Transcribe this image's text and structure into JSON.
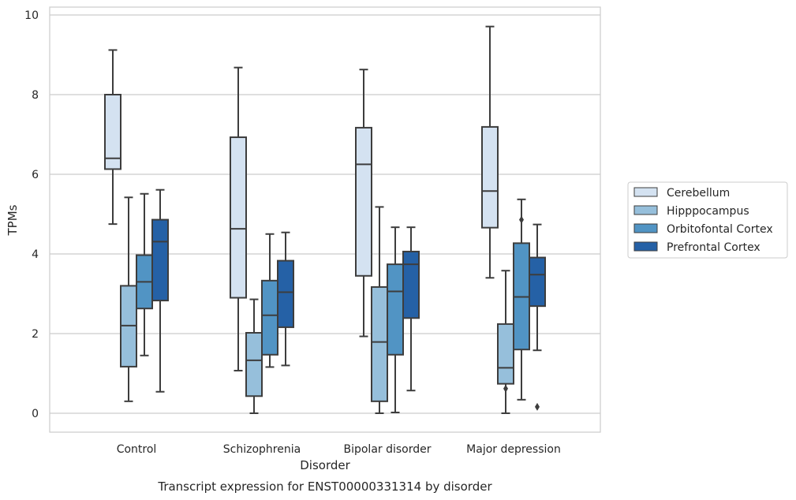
{
  "caption": "Transcript expression for ENST00000331314 by disorder",
  "colors": {
    "grid": "#cccccc",
    "frame": "#cccccc",
    "line": "#3d3d3d",
    "series": [
      "#d4e2f1",
      "#96bfdb",
      "#5194c4",
      "#2561a6"
    ]
  },
  "chart_data": {
    "type": "box",
    "title": "",
    "xlabel": "Disorder",
    "ylabel": "TPMs",
    "ylim": [
      -0.45,
      10.2
    ],
    "yticks": [
      0,
      2,
      4,
      6,
      8,
      10
    ],
    "grid": "horizontal",
    "legend_position": "right, outside",
    "categories": [
      "Control",
      "Schizophrenia",
      "Bipolar disorder",
      "Major depression"
    ],
    "series": [
      {
        "name": "Cerebellum",
        "boxes": [
          {
            "whislo": 4.75,
            "q1": 6.13,
            "med": 6.4,
            "q3": 8.0,
            "whishi": 9.12,
            "fliers": []
          },
          {
            "whislo": 1.07,
            "q1": 2.9,
            "med": 4.63,
            "q3": 6.93,
            "whishi": 8.68,
            "fliers": []
          },
          {
            "whislo": 1.93,
            "q1": 3.45,
            "med": 6.25,
            "q3": 7.17,
            "whishi": 8.63,
            "fliers": []
          },
          {
            "whislo": 3.4,
            "q1": 4.66,
            "med": 5.58,
            "q3": 7.19,
            "whishi": 9.71,
            "fliers": []
          }
        ]
      },
      {
        "name": "Hipppocampus",
        "boxes": [
          {
            "whislo": 0.3,
            "q1": 1.17,
            "med": 2.2,
            "q3": 3.2,
            "whishi": 5.42,
            "fliers": []
          },
          {
            "whislo": 0.0,
            "q1": 0.43,
            "med": 1.33,
            "q3": 2.02,
            "whishi": 2.86,
            "fliers": []
          },
          {
            "whislo": 0.0,
            "q1": 0.3,
            "med": 1.79,
            "q3": 3.17,
            "whishi": 5.18,
            "fliers": []
          },
          {
            "whislo": 0.0,
            "q1": 0.74,
            "med": 1.14,
            "q3": 2.24,
            "whishi": 3.58,
            "fliers": [
              0.62
            ]
          }
        ]
      },
      {
        "name": "Orbitofontal Cortex",
        "boxes": [
          {
            "whislo": 1.45,
            "q1": 2.63,
            "med": 3.3,
            "q3": 3.97,
            "whishi": 5.51,
            "fliers": []
          },
          {
            "whislo": 1.16,
            "q1": 1.47,
            "med": 2.46,
            "q3": 3.33,
            "whishi": 4.5,
            "fliers": []
          },
          {
            "whislo": 0.02,
            "q1": 1.47,
            "med": 3.06,
            "q3": 3.74,
            "whishi": 4.67,
            "fliers": []
          },
          {
            "whislo": 0.34,
            "q1": 1.6,
            "med": 2.92,
            "q3": 4.27,
            "whishi": 5.37,
            "fliers": [
              4.86
            ]
          }
        ]
      },
      {
        "name": "Prefrontal Cortex",
        "boxes": [
          {
            "whislo": 0.54,
            "q1": 2.83,
            "med": 4.31,
            "q3": 4.86,
            "whishi": 5.61,
            "fliers": []
          },
          {
            "whislo": 1.2,
            "q1": 2.16,
            "med": 3.04,
            "q3": 3.83,
            "whishi": 4.54,
            "fliers": []
          },
          {
            "whislo": 0.57,
            "q1": 2.39,
            "med": 3.74,
            "q3": 4.06,
            "whishi": 4.67,
            "fliers": []
          },
          {
            "whislo": 1.58,
            "q1": 2.69,
            "med": 3.48,
            "q3": 3.91,
            "whishi": 4.74,
            "fliers": [
              0.16
            ]
          }
        ]
      }
    ]
  }
}
